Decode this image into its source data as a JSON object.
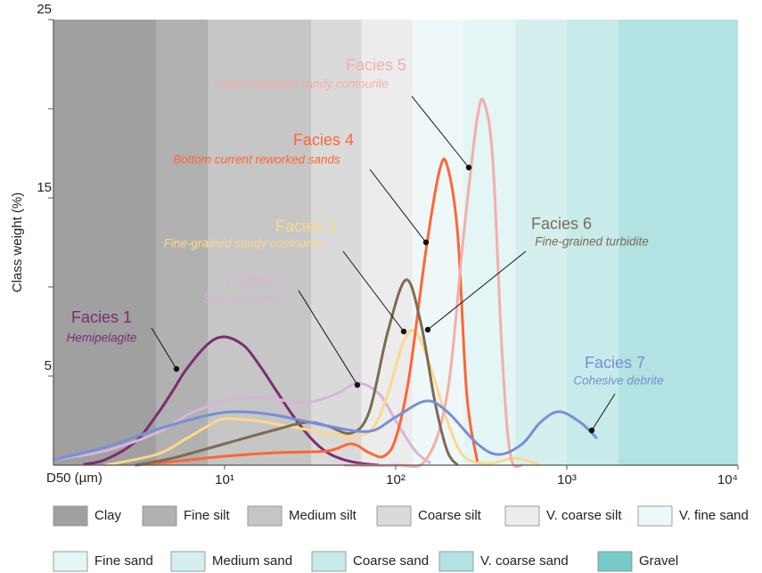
{
  "chart_data": {
    "type": "line",
    "xlabel": "D50 (µm)",
    "ylabel": "Class weight (%)",
    "log_x": true,
    "xlim": [
      1,
      10000
    ],
    "xticks": [
      {
        "value": 10,
        "label": "10¹"
      },
      {
        "value": 100,
        "label": "10²"
      },
      {
        "value": 1000,
        "label": "10³"
      },
      {
        "value": 10000,
        "label": "10⁴"
      }
    ],
    "ylim": [
      0,
      25
    ],
    "yticks": [
      5,
      15,
      25
    ],
    "yminor": [
      10,
      20
    ],
    "size_classes": [
      {
        "name": "Clay",
        "color": "#a0a0a0",
        "range": [
          1,
          4
        ]
      },
      {
        "name": "Fine silt",
        "color": "#b1b1b1",
        "range": [
          4,
          8
        ]
      },
      {
        "name": "Medium silt",
        "color": "#c6c6c6",
        "range": [
          8,
          32
        ]
      },
      {
        "name": "Coarse silt",
        "color": "#dadada",
        "range": [
          32,
          63
        ]
      },
      {
        "name": "V. coarse silt",
        "color": "#ececec",
        "range": [
          63,
          125
        ]
      },
      {
        "name": "V. fine sand",
        "color": "#eef8f8",
        "range": [
          125,
          250
        ]
      },
      {
        "name": "Fine sand",
        "color": "#e3f5f5",
        "range": [
          250,
          500
        ]
      },
      {
        "name": "Medium sand",
        "color": "#d5efef",
        "range": [
          500,
          1000
        ]
      },
      {
        "name": "Coarse sand",
        "color": "#c6ebea",
        "range": [
          1000,
          2000
        ]
      },
      {
        "name": "V. coarse sand",
        "color": "#b2e2e1",
        "range": [
          2000,
          10000
        ]
      },
      {
        "name": "Gravel",
        "color": "#76cbc8",
        "range": [
          10000,
          10000
        ]
      }
    ],
    "series": [
      {
        "name": "Facies 1",
        "description": "Hemipelagite",
        "color": "#7b2d6e",
        "x": [
          1.5,
          2,
          3,
          4,
          5,
          6,
          8,
          10,
          13,
          16,
          20,
          25,
          32,
          40,
          50,
          63,
          80
        ],
        "values": [
          0.05,
          0.3,
          1.3,
          2.8,
          4.2,
          5.4,
          6.8,
          7.2,
          6.7,
          5.6,
          4.2,
          2.8,
          1.5,
          0.7,
          0.3,
          0.1,
          0
        ]
      },
      {
        "name": "Facies 2",
        "description": "Silty contourite",
        "color": "#d8b6d8",
        "x": [
          1,
          2,
          4,
          6,
          8,
          10,
          15,
          20,
          30,
          45,
          60,
          80,
          100,
          130,
          160
        ],
        "values": [
          0.3,
          0.8,
          1.8,
          2.8,
          3.3,
          3.6,
          3.8,
          3.7,
          3.5,
          4.0,
          4.6,
          4.0,
          2.5,
          0.8,
          0.1
        ]
      },
      {
        "name": "Facies 3",
        "description": "Fine-grained sandy contourite",
        "color": "#fcd88a",
        "x": [
          2,
          4,
          6,
          8,
          10,
          15,
          20,
          30,
          45,
          60,
          75,
          90,
          110,
          130,
          160,
          200,
          250,
          350,
          500,
          700
        ],
        "values": [
          0,
          0.6,
          1.5,
          2.2,
          2.6,
          2.5,
          2.3,
          2.0,
          1.7,
          1.6,
          2.2,
          4,
          6.8,
          7.5,
          5.5,
          2.5,
          0.5,
          0.1,
          0.4,
          0
        ]
      },
      {
        "name": "Facies 4",
        "description": "Bottom current reworked sands",
        "color": "#ff6633",
        "x": [
          3,
          5,
          10,
          20,
          40,
          55,
          70,
          85,
          100,
          120,
          150,
          180,
          200,
          230,
          260,
          300
        ],
        "values": [
          0,
          0.2,
          0.5,
          0.7,
          0.8,
          1.2,
          0.7,
          0.5,
          1.5,
          5,
          12,
          16.5,
          16.8,
          13,
          4,
          0.2
        ]
      },
      {
        "name": "Facies 5",
        "description": "Coarse-grained sandy contourite",
        "color": "#f4aeaa",
        "x": [
          50,
          100,
          150,
          200,
          250,
          300,
          330,
          370,
          420,
          470,
          550
        ],
        "values": [
          0,
          0,
          0.3,
          4,
          13,
          19.5,
          20.3,
          17,
          6,
          0.5,
          0
        ]
      },
      {
        "name": "Facies 6",
        "description": "Fine-grained turbidite",
        "color": "#7d6b55",
        "x": [
          3,
          5,
          10,
          20,
          30,
          40,
          55,
          70,
          90,
          115,
          140,
          170,
          200,
          230
        ],
        "values": [
          0,
          0.4,
          1.2,
          2.0,
          2.4,
          2.2,
          1.8,
          3,
          7.5,
          10.4,
          8,
          3.5,
          0.8,
          0
        ]
      },
      {
        "name": "Facies 7",
        "description": "Cohesive debrite",
        "color": "#7a8ed6",
        "x": [
          1,
          2,
          4,
          8,
          12,
          20,
          40,
          70,
          100,
          150,
          200,
          300,
          400,
          550,
          700,
          900,
          1200,
          1500
        ],
        "values": [
          0.3,
          1,
          2,
          2.8,
          3.0,
          2.8,
          2.2,
          1.9,
          2.7,
          3.6,
          3.0,
          1.2,
          0.6,
          1.2,
          2.4,
          3.0,
          2.4,
          1.5
        ]
      }
    ]
  }
}
